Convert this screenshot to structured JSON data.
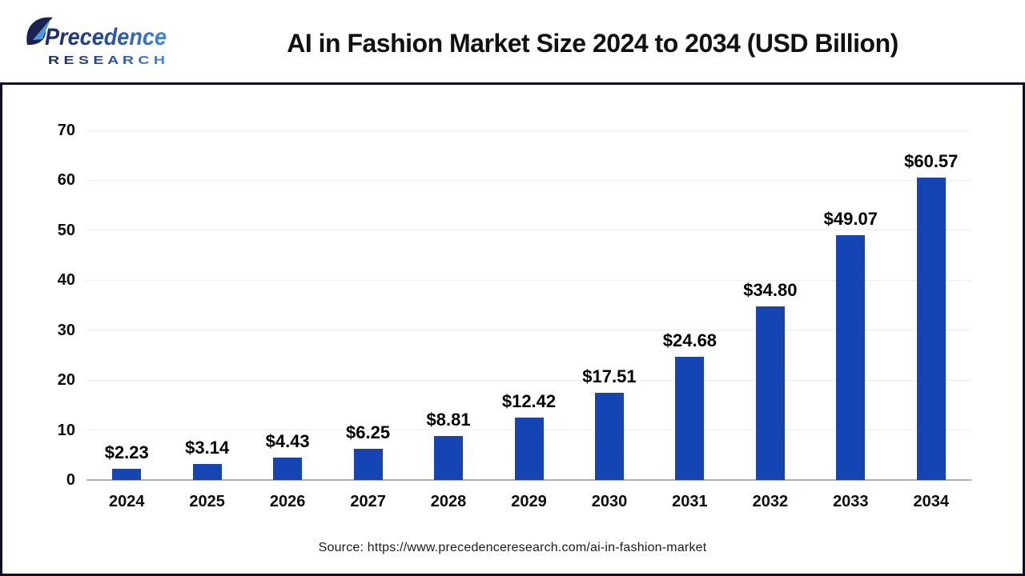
{
  "header": {
    "logo": {
      "name": "Precedence",
      "subname": "R E S E A R C H"
    },
    "title": "AI in Fashion Market Size 2024 to 2034 (USD Billion)"
  },
  "chart_data": {
    "type": "bar",
    "title": "AI in Fashion Market Size 2024 to 2034 (USD Billion)",
    "categories": [
      "2024",
      "2025",
      "2026",
      "2027",
      "2028",
      "2029",
      "2030",
      "2031",
      "2032",
      "2033",
      "2034"
    ],
    "values": [
      2.23,
      3.14,
      4.43,
      6.25,
      8.81,
      12.42,
      17.51,
      24.68,
      34.8,
      49.07,
      60.57
    ],
    "value_labels": [
      "$2.23",
      "$3.14",
      "$4.43",
      "$6.25",
      "$8.81",
      "$12.42",
      "$17.51",
      "$24.68",
      "$34.80",
      "$49.07",
      "$60.57"
    ],
    "xlabel": "",
    "ylabel": "",
    "ylim": [
      0,
      70
    ],
    "yticks": [
      0,
      10,
      20,
      30,
      40,
      50,
      60,
      70
    ],
    "grid": true,
    "legend": "none",
    "bar_color": "#1545b4",
    "grid_color": "#ededed",
    "baseline_color": "#b0b0b0",
    "label_color": "#000000"
  },
  "footer": {
    "source": "Source: https://www.precedenceresearch.com/ai-in-fashion-market"
  },
  "colors": {
    "frame_border": "#0d0d26",
    "header_divider": "#0a0a32",
    "logo_navy": "#1f2a6e",
    "logo_mid": "#24479f",
    "logo_blue": "#3f86e8",
    "leaf_dark": "#1c2352",
    "leaf_light": "#4b9be0"
  }
}
